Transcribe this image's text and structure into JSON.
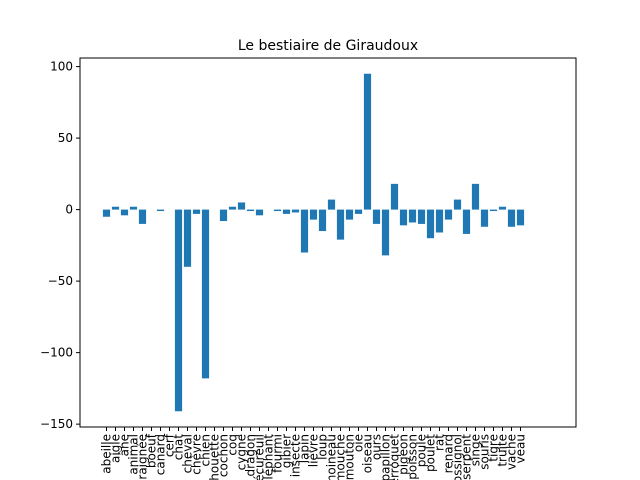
{
  "chart_data": {
    "type": "bar",
    "title": "Le bestiaire de Giraudoux",
    "xlabel": "",
    "ylabel": "",
    "ylim": [
      -152,
      106
    ],
    "yticks": [
      -150,
      -100,
      -50,
      0,
      50,
      100
    ],
    "ytick_labels": [
      "−150",
      "−100",
      "−50",
      "0",
      "50",
      "100"
    ],
    "grid": false,
    "bar_color": "#1f77b4",
    "categories": [
      "abeille",
      "aigle",
      "âne",
      "animal",
      "araignée",
      "boeuf",
      "canard",
      "cerf",
      "chat",
      "cheval",
      "chèvre",
      "chien",
      "chouette",
      "cochon",
      "coq",
      "cygne",
      "dragon",
      "écureuil",
      "éléphant",
      "fourmi",
      "gibier",
      "insecte",
      "lapin",
      "lièvre",
      "loup",
      "moineau",
      "mouche",
      "mouton",
      "oie",
      "oiseau",
      "ours",
      "papillon",
      "perroquet",
      "pigeon",
      "poisson",
      "poule",
      "poulet",
      "rat",
      "renard",
      "rossignol",
      "serpent",
      "singe",
      "souris",
      "tigre",
      "truite",
      "vache",
      "veau"
    ],
    "values": [
      -5,
      2,
      -4,
      2,
      -10,
      0,
      -1,
      0,
      -141,
      -40,
      -3,
      -118,
      0,
      -8,
      2,
      5,
      -1,
      -4,
      0,
      -1,
      -3,
      -2,
      -30,
      -7,
      -15,
      7,
      -21,
      -7,
      -3,
      95,
      -10,
      -32,
      18,
      -11,
      -9,
      -10,
      -20,
      -16,
      -7,
      7,
      -17,
      18,
      -12,
      -1,
      2,
      -12,
      -11
    ]
  }
}
